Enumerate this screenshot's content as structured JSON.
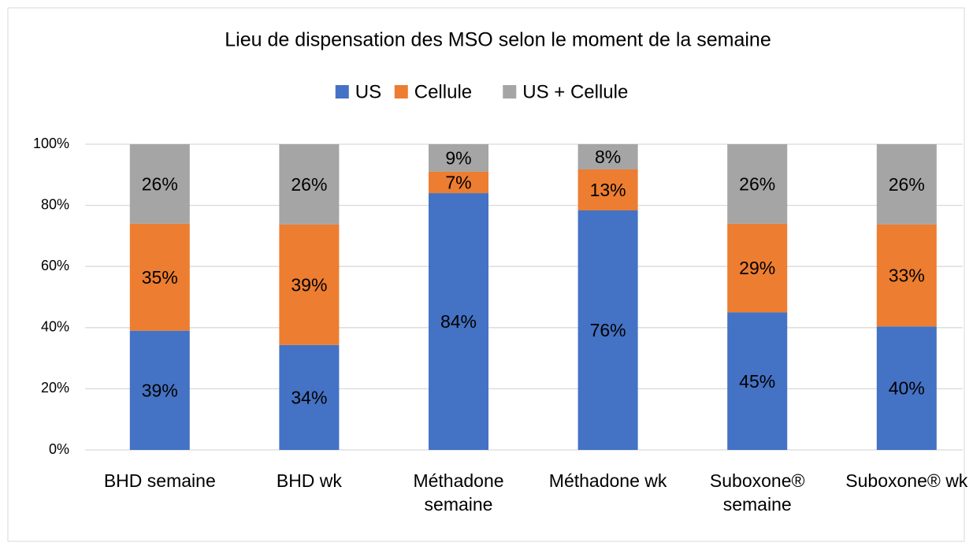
{
  "chart_data": {
    "type": "bar",
    "stacked": "percent",
    "title": "Lieu de dispensation des MSO selon le moment de la semaine",
    "categories": [
      "BHD semaine",
      "BHD wk",
      "Méthadone semaine",
      "Méthadone wk",
      "Suboxone® semaine",
      "Suboxone® wk"
    ],
    "series": [
      {
        "name": "US",
        "color": "#4472c4",
        "values": [
          39,
          34,
          84,
          76,
          45,
          40
        ],
        "value_labels": [
          "39%",
          "34%",
          "84%",
          "76%",
          "45%",
          "40%"
        ]
      },
      {
        "name": "Cellule",
        "color": "#ed7d31",
        "values": [
          35,
          39,
          7,
          13,
          29,
          33
        ],
        "value_labels": [
          "35%",
          "39%",
          "7%",
          "13%",
          "29%",
          "33%"
        ]
      },
      {
        "name": "US + Cellule",
        "color": "#a5a5a5",
        "values": [
          26,
          26,
          9,
          8,
          26,
          26
        ],
        "value_labels": [
          "26%",
          "26%",
          "9%",
          "8%",
          "26%",
          "26%"
        ]
      }
    ],
    "ylim": [
      0,
      100
    ],
    "yticks": [
      {
        "value": 0,
        "label": "0%"
      },
      {
        "value": 20,
        "label": "20%"
      },
      {
        "value": 40,
        "label": "40%"
      },
      {
        "value": 60,
        "label": "60%"
      },
      {
        "value": 80,
        "label": "80%"
      },
      {
        "value": 100,
        "label": "100%"
      }
    ],
    "grid": true,
    "legend": "top"
  }
}
